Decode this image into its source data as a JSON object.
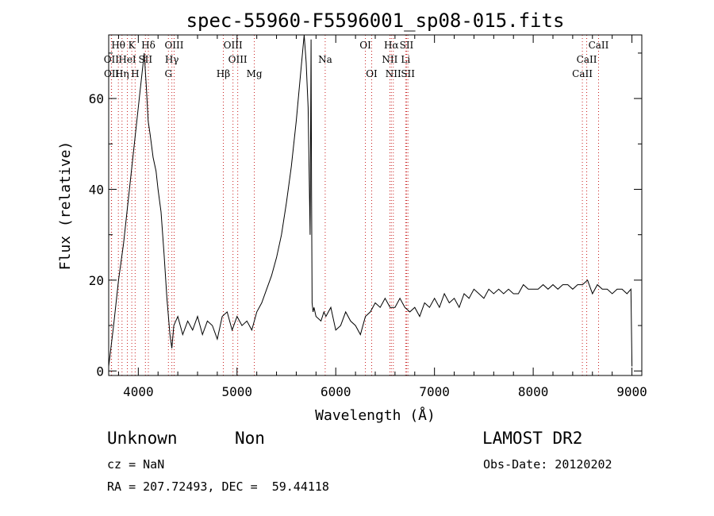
{
  "chart_data": {
    "type": "line",
    "title": "spec-55960-F5596001_sp08-015.fits",
    "xlabel": "Wavelength (Å)",
    "ylabel": "Flux (relative)",
    "xlim": [
      3700,
      9100
    ],
    "ylim": [
      -1,
      74
    ],
    "x_ticks": [
      4000,
      5000,
      6000,
      7000,
      8000,
      9000
    ],
    "y_ticks": [
      0,
      20,
      40,
      60
    ],
    "grid": false,
    "series": [
      {
        "x": [
          3700,
          3750,
          3800,
          3850,
          3900,
          3950,
          4000,
          4020,
          4040,
          4060,
          4080,
          4100,
          4120,
          4150,
          4180,
          4200,
          4230,
          4260,
          4290,
          4320,
          4340,
          4360,
          4400,
          4450,
          4500,
          4550,
          4600,
          4650,
          4700,
          4750,
          4800,
          4850,
          4900,
          4950,
          5000,
          5050,
          5100,
          5150,
          5200,
          5250,
          5300,
          5350,
          5400,
          5450,
          5500,
          5550,
          5600,
          5650,
          5680,
          5700,
          5720,
          5740,
          5750,
          5755,
          5760,
          5770,
          5780,
          5800,
          5850,
          5880,
          5900,
          5950,
          6000,
          6050,
          6100,
          6150,
          6200,
          6250,
          6300,
          6350,
          6400,
          6450,
          6500,
          6550,
          6600,
          6650,
          6700,
          6750,
          6800,
          6850,
          6900,
          6950,
          7000,
          7050,
          7100,
          7150,
          7200,
          7250,
          7300,
          7350,
          7400,
          7450,
          7500,
          7550,
          7600,
          7650,
          7700,
          7750,
          7800,
          7850,
          7900,
          7950,
          8000,
          8050,
          8100,
          8150,
          8200,
          8250,
          8300,
          8350,
          8400,
          8450,
          8500,
          8550,
          8600,
          8650,
          8700,
          8750,
          8800,
          8850,
          8900,
          8950,
          8990,
          9000
        ],
        "y": [
          1,
          10,
          20,
          28,
          38,
          48,
          58,
          62,
          66,
          70,
          63,
          55,
          52,
          47,
          44,
          40,
          35,
          26,
          16,
          8,
          5,
          10,
          12,
          8,
          11,
          9,
          12,
          8,
          11,
          10,
          7,
          12,
          13,
          9,
          12,
          10,
          11,
          9,
          13,
          15,
          18,
          21,
          25,
          30,
          37,
          45,
          55,
          67,
          74,
          68,
          58,
          30,
          73,
          40,
          15,
          13,
          14,
          12,
          11,
          13,
          12,
          14,
          9,
          10,
          13,
          11,
          10,
          8,
          12,
          13,
          15,
          14,
          16,
          14,
          14,
          16,
          14,
          13,
          14,
          12,
          15,
          14,
          16,
          14,
          17,
          15,
          16,
          14,
          17,
          16,
          18,
          17,
          16,
          18,
          17,
          18,
          17,
          18,
          17,
          17,
          19,
          18,
          18,
          18,
          19,
          18,
          19,
          18,
          19,
          19,
          18,
          19,
          19,
          20,
          17,
          19,
          18,
          18,
          17,
          18,
          18,
          17,
          18,
          1
        ]
      }
    ],
    "line_labels": [
      {
        "text": "Hθ",
        "wavelength": 3798,
        "row": 0
      },
      {
        "text": "K",
        "wavelength": 3934,
        "row": 0
      },
      {
        "text": "Hδ",
        "wavelength": 4102,
        "row": 0
      },
      {
        "text": "OIII",
        "wavelength": 4363,
        "row": 0
      },
      {
        "text": "OIII",
        "wavelength": 4959,
        "row": 0
      },
      {
        "text": "OI",
        "wavelength": 6300,
        "row": 0
      },
      {
        "text": "Hα",
        "wavelength": 6563,
        "row": 0
      },
      {
        "text": "SII",
        "wavelength": 6717,
        "row": 0
      },
      {
        "text": "CaII",
        "wavelength": 8662,
        "row": 0
      },
      {
        "text": "OII",
        "wavelength": 3727,
        "row": 1
      },
      {
        "text": "HeI",
        "wavelength": 3889,
        "row": 1
      },
      {
        "text": "SII",
        "wavelength": 4072,
        "row": 1
      },
      {
        "text": "Hγ",
        "wavelength": 4340,
        "row": 1
      },
      {
        "text": "OIII",
        "wavelength": 5007,
        "row": 1
      },
      {
        "text": "Na",
        "wavelength": 5893,
        "row": 1
      },
      {
        "text": "NII",
        "wavelength": 6548,
        "row": 1
      },
      {
        "text": "Li",
        "wavelength": 6708,
        "row": 1
      },
      {
        "text": "CaII",
        "wavelength": 8542,
        "row": 1
      },
      {
        "text": "OII",
        "wavelength": 3729,
        "row": 2
      },
      {
        "text": "Hη",
        "wavelength": 3835,
        "row": 2
      },
      {
        "text": "H",
        "wavelength": 3968,
        "row": 2
      },
      {
        "text": "G",
        "wavelength": 4305,
        "row": 2
      },
      {
        "text": "Hβ",
        "wavelength": 4861,
        "row": 2
      },
      {
        "text": "Mg",
        "wavelength": 5175,
        "row": 2
      },
      {
        "text": "OI",
        "wavelength": 6364,
        "row": 2
      },
      {
        "text": "NII",
        "wavelength": 6583,
        "row": 2
      },
      {
        "text": "SII",
        "wavelength": 6731,
        "row": 2
      },
      {
        "text": "CaII",
        "wavelength": 8498,
        "row": 2
      }
    ],
    "line_marker_color": "#c81e1e"
  },
  "info": {
    "class": "Unknown",
    "subclass": "Non",
    "survey": "LAMOST DR2",
    "cz": "cz = NaN",
    "obs_date": "Obs-Date: 20120202",
    "coords": "RA = 207.72493, DEC =  59.44118"
  }
}
